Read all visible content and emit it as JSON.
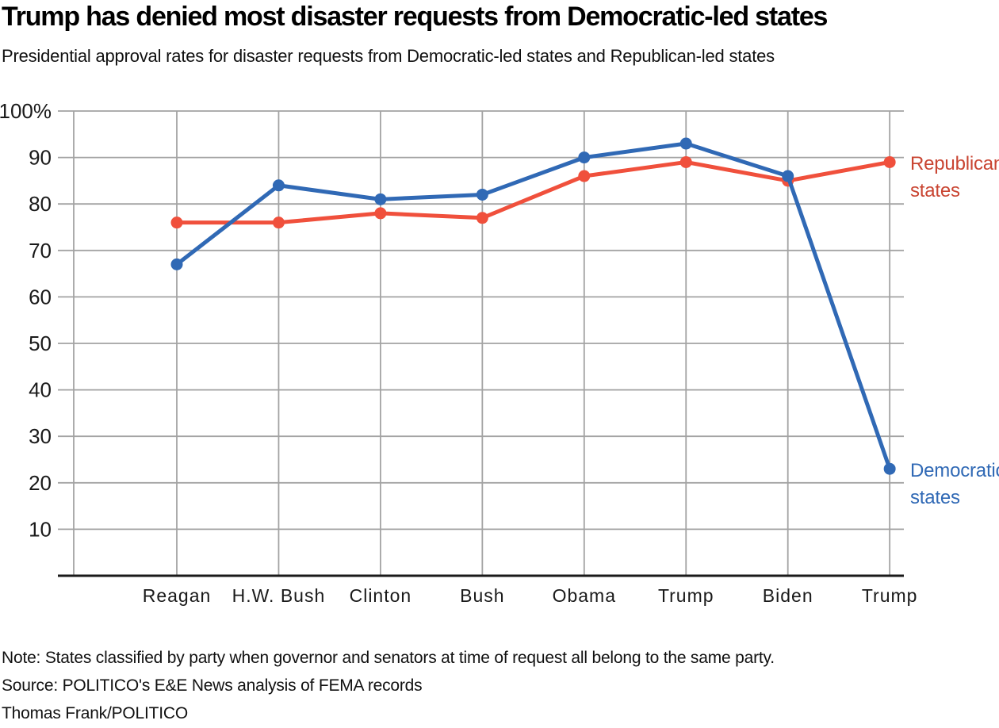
{
  "header": {
    "title": "Trump has denied most disaster requests from Democratic-led states",
    "subtitle": "Presidential approval rates for disaster requests from Democratic-led states and Republican-led states"
  },
  "chart_data": {
    "type": "line",
    "title": "Trump has denied most disaster requests from Democratic-led states",
    "subtitle": "Presidential approval rates for disaster requests from Democratic-led states and Republican-led states",
    "categories": [
      "Reagan",
      "H.W. Bush",
      "Clinton",
      "Bush",
      "Obama",
      "Trump",
      "Biden",
      "Trump"
    ],
    "series": [
      {
        "name": "Republican states",
        "label": "Republican states",
        "color": "#f0503c",
        "label_color": "#c94532",
        "values": [
          76,
          76,
          78,
          77,
          86,
          89,
          85,
          89
        ]
      },
      {
        "name": "Democratic states",
        "label": "Democratic states",
        "color": "#3069b5",
        "label_color": "#3069b5",
        "values": [
          67,
          84,
          81,
          82,
          90,
          93,
          86,
          23
        ]
      }
    ],
    "y_axis": {
      "min": 0,
      "max": 100,
      "ticks": [
        {
          "v": 10,
          "label": "10"
        },
        {
          "v": 20,
          "label": "20"
        },
        {
          "v": 30,
          "label": "30"
        },
        {
          "v": 40,
          "label": "40"
        },
        {
          "v": 50,
          "label": "50"
        },
        {
          "v": 60,
          "label": "60"
        },
        {
          "v": 70,
          "label": "70"
        },
        {
          "v": 80,
          "label": "80"
        },
        {
          "v": 90,
          "label": "90"
        },
        {
          "v": 100,
          "label": "100%"
        }
      ]
    },
    "grid": true,
    "grid_color": "#a3a3a3",
    "axis_color": "#1a1a1a",
    "legend_position": "right-of-line-ends"
  },
  "footer": {
    "note": "Note: States classified by party when governor and senators at time of request all belong to the same party.",
    "source": "Source: POLITICO's E&E News analysis of FEMA records",
    "byline": "Thomas Frank/POLITICO"
  }
}
